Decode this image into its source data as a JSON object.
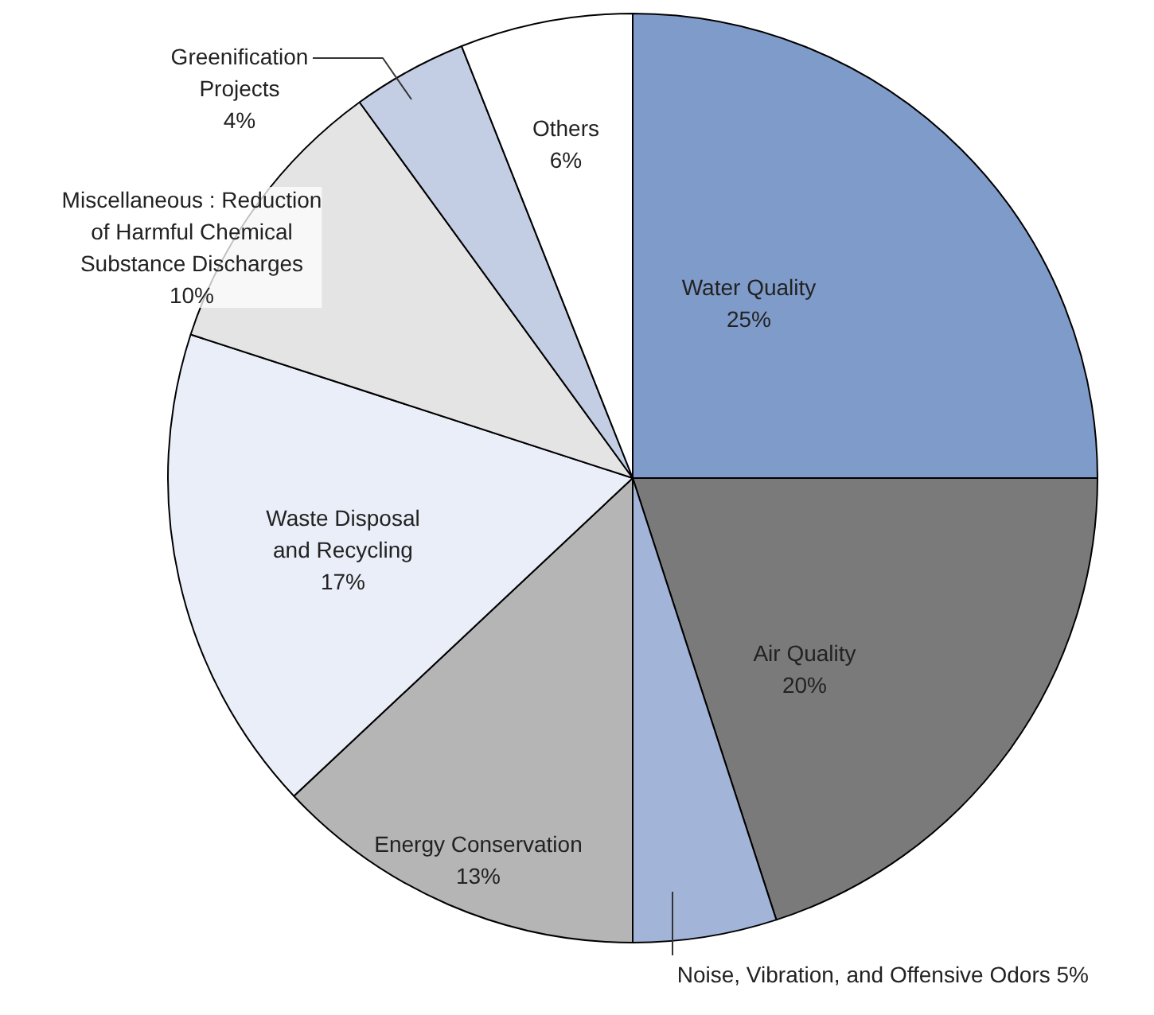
{
  "chart_data": {
    "type": "pie",
    "categories": [
      "Water Quality",
      "Air Quality",
      "Noise, Vibration, and Offensive Odors",
      "Energy Conservation",
      "Waste Disposal\nand Recycling",
      "Miscellaneous : Reduction\nof Harmful Chemical\nSubstance Discharges",
      "Greenification\nProjects",
      "Others"
    ],
    "values": [
      25,
      20,
      5,
      13,
      17,
      10,
      4,
      6
    ],
    "colors": [
      "#7f9bc9",
      "#7a7a7a",
      "#a3b4d9",
      "#b5b5b5",
      "#eaeef8",
      "#e4e4e4",
      "#c3cee4",
      "#ffffff"
    ],
    "value_labels": [
      "25%",
      "20%",
      "5%",
      "13%",
      "17%",
      "10%",
      "4%",
      "6%"
    ]
  }
}
